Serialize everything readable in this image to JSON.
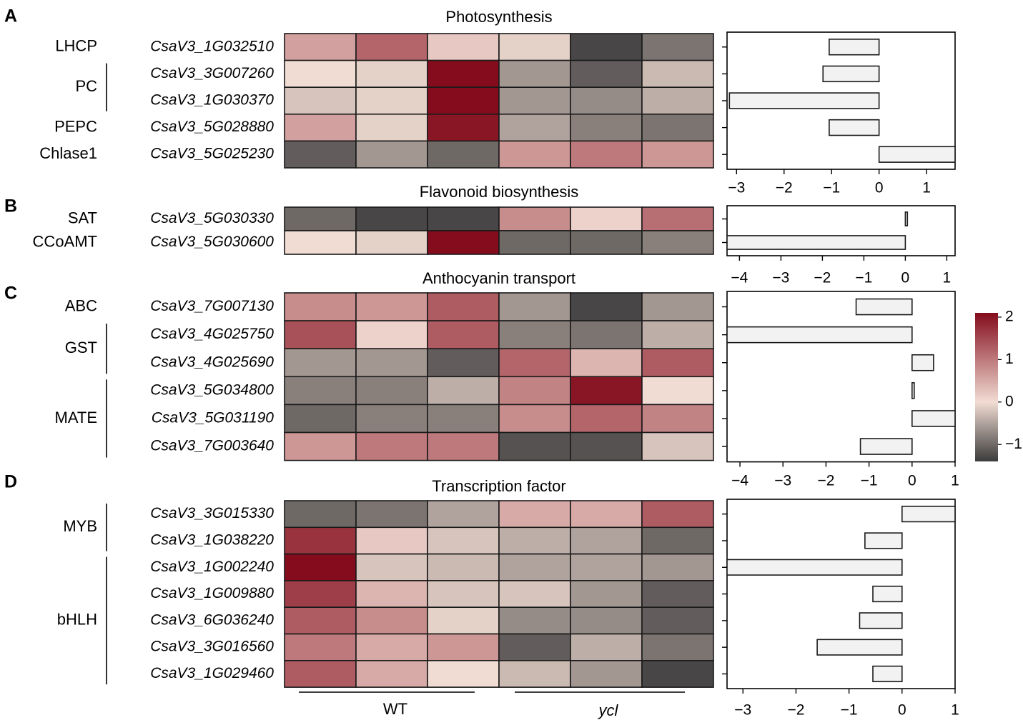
{
  "color_scale": {
    "low": "#3b3b3b",
    "mid": "#f1dcd3",
    "high": "#840c1c",
    "min": -1.4,
    "max": 2.1,
    "ticks": [
      "2",
      "1",
      "0",
      "−1"
    ]
  },
  "conditions": {
    "wt_label": "WT",
    "mutant_label": "ycl"
  },
  "chart_data": [
    {
      "type": "heatmap",
      "panel": "A",
      "title": "Photosynthesis",
      "groups": [
        {
          "label": "LHCP",
          "rows": [
            0
          ]
        },
        {
          "label": "PC",
          "rows": [
            1,
            2
          ]
        },
        {
          "label": "PEPC",
          "rows": [
            3
          ]
        },
        {
          "label": "Chlase1",
          "rows": [
            4
          ]
        }
      ],
      "genes": [
        "CsaV3_1G032510",
        "CsaV3_3G007260",
        "CsaV3_1G030370",
        "CsaV3_5G028880",
        "CsaV3_5G025230"
      ],
      "values": [
        [
          0.6,
          1.2,
          0.2,
          -0.1,
          -1.3,
          -0.9
        ],
        [
          0.0,
          -0.1,
          2.1,
          -0.6,
          -1.1,
          -0.3
        ],
        [
          -0.2,
          -0.1,
          2.1,
          -0.6,
          -0.7,
          -0.4
        ],
        [
          0.6,
          -0.1,
          2.0,
          -0.5,
          -0.8,
          -0.9
        ],
        [
          -1.1,
          -0.6,
          -1.0,
          0.7,
          1.0,
          0.7
        ]
      ],
      "bars": [
        -1.05,
        -1.18,
        -3.15,
        -1.05,
        1.6
      ],
      "bar_axis": {
        "min": -3.2,
        "max": 1.6,
        "ticks": [
          -3,
          -2,
          -1,
          0,
          1
        ],
        "tick_labels": [
          "−3",
          "−2",
          "−1",
          "0",
          "1"
        ]
      }
    },
    {
      "type": "heatmap",
      "panel": "B",
      "title": "Flavonoid biosynthesis",
      "groups": [
        {
          "label": "SAT",
          "rows": [
            0
          ]
        },
        {
          "label": "CCoAMT",
          "rows": [
            1
          ]
        }
      ],
      "genes": [
        "CsaV3_5G030330",
        "CsaV3_5G030600"
      ],
      "values": [
        [
          -1.0,
          -1.3,
          -1.3,
          0.8,
          0.1,
          1.1
        ],
        [
          0.0,
          -0.1,
          2.1,
          -1.0,
          -1.0,
          -0.8
        ]
      ],
      "bars": [
        0.05,
        -4.3
      ],
      "bar_axis": {
        "min": -4.3,
        "max": 1.2,
        "ticks": [
          -4,
          -3,
          -2,
          -1,
          0,
          1
        ],
        "tick_labels": [
          "−4",
          "−3",
          "−2",
          "−1",
          "0",
          "1"
        ]
      }
    },
    {
      "type": "heatmap",
      "panel": "C",
      "title": "Anthocyanin transport",
      "groups": [
        {
          "label": "ABC",
          "rows": [
            0
          ]
        },
        {
          "label": "GST",
          "rows": [
            1,
            2
          ]
        },
        {
          "label": "MATE",
          "rows": [
            3,
            4,
            5
          ]
        }
      ],
      "genes": [
        "CsaV3_7G007130",
        "CsaV3_4G025750",
        "CsaV3_4G025690",
        "CsaV3_5G034800",
        "CsaV3_5G031190",
        "CsaV3_7G003640"
      ],
      "values": [
        [
          0.8,
          0.7,
          1.3,
          -0.6,
          -1.3,
          -0.6
        ],
        [
          1.4,
          0.1,
          1.3,
          -0.8,
          -0.9,
          -0.4
        ],
        [
          -0.6,
          -0.6,
          -1.1,
          1.2,
          0.4,
          1.3
        ],
        [
          -0.8,
          -0.8,
          -0.4,
          0.9,
          2.0,
          0.0
        ],
        [
          -1.0,
          -0.8,
          -0.8,
          0.8,
          1.2,
          0.9
        ],
        [
          0.7,
          1.0,
          1.0,
          -1.2,
          -1.2,
          -0.2
        ]
      ],
      "bars": [
        -1.3,
        -4.3,
        0.5,
        0.05,
        1.0,
        -1.2
      ],
      "bar_axis": {
        "min": -4.3,
        "max": 1.0,
        "ticks": [
          -4,
          -3,
          -2,
          -1,
          0,
          1
        ],
        "tick_labels": [
          "−4",
          "−3",
          "−2",
          "−1",
          "0",
          "1"
        ]
      }
    },
    {
      "type": "heatmap",
      "panel": "D",
      "title": "Transcription factor",
      "groups": [
        {
          "label": "MYB",
          "rows": [
            0,
            1
          ]
        },
        {
          "label": "bHLH",
          "rows": [
            2,
            3,
            4,
            5,
            6
          ]
        }
      ],
      "genes": [
        "CsaV3_3G015330",
        "CsaV3_1G038220",
        "CsaV3_1G002240",
        "CsaV3_1G009880",
        "CsaV3_6G036240",
        "CsaV3_3G016560",
        "CsaV3_1G029460"
      ],
      "values": [
        [
          -1.0,
          -0.9,
          -0.5,
          0.5,
          0.5,
          1.3
        ],
        [
          1.7,
          0.2,
          -0.2,
          -0.4,
          -0.5,
          -1.0
        ],
        [
          2.1,
          -0.2,
          -0.3,
          -0.5,
          -0.5,
          -0.6
        ],
        [
          1.6,
          0.4,
          -0.2,
          -0.2,
          -0.6,
          -1.1
        ],
        [
          1.3,
          0.8,
          -0.1,
          -0.7,
          -0.7,
          -1.1
        ],
        [
          1.0,
          0.5,
          0.7,
          -1.1,
          -0.4,
          -0.9
        ],
        [
          1.3,
          0.5,
          0.0,
          -0.3,
          -0.6,
          -1.3
        ]
      ],
      "bars": [
        1.0,
        -0.7,
        -3.3,
        -0.55,
        -0.8,
        -1.6,
        -0.55
      ],
      "bar_axis": {
        "min": -3.3,
        "max": 1.0,
        "ticks": [
          -3,
          -2,
          -1,
          0,
          1
        ],
        "tick_labels": [
          "−3",
          "−2",
          "−1",
          "0",
          "1"
        ]
      }
    }
  ]
}
